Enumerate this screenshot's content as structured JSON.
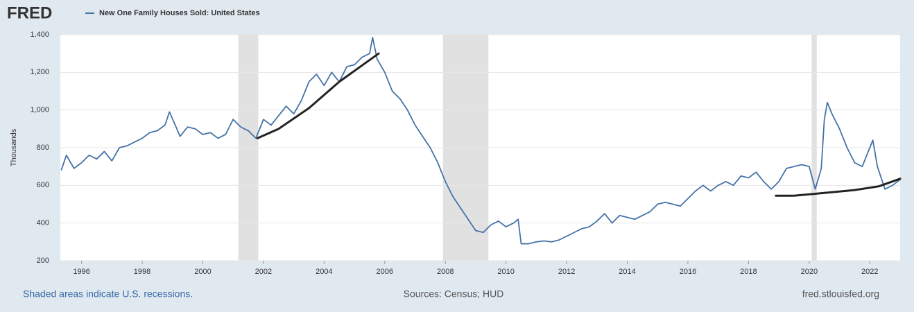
{
  "logo": "FRED",
  "chart_data": {
    "type": "line",
    "ylabel": "Thousands",
    "xlim": [
      1995.3,
      2023.0
    ],
    "ylim": [
      200,
      1400
    ],
    "xticks": [
      1996,
      1998,
      2000,
      2002,
      2004,
      2006,
      2008,
      2010,
      2012,
      2014,
      2016,
      2018,
      2020,
      2022
    ],
    "yticks": [
      200,
      400,
      600,
      800,
      {
        "value": 1000,
        "label": "1,000"
      },
      {
        "value": 1200,
        "label": "1,200"
      },
      {
        "value": 1400,
        "label": "1,400"
      }
    ],
    "grid": true,
    "recessions": [
      [
        2001.17,
        2001.83
      ],
      [
        2007.92,
        2009.42
      ],
      [
        2020.08,
        2020.25
      ]
    ],
    "recession_color": "#e1e1e1",
    "series": [
      {
        "name": "New One Family Houses Sold: United States",
        "color": "#4572a7",
        "x": [
          1995.33,
          1995.5,
          1995.75,
          1996.0,
          1996.25,
          1996.5,
          1996.75,
          1997.0,
          1997.25,
          1997.5,
          1997.75,
          1998.0,
          1998.25,
          1998.5,
          1998.75,
          1998.9,
          1999.25,
          1999.5,
          1999.75,
          2000.0,
          2000.25,
          2000.5,
          2000.75,
          2001.0,
          2001.25,
          2001.5,
          2001.75,
          2002.0,
          2002.25,
          2002.5,
          2002.75,
          2003.0,
          2003.25,
          2003.5,
          2003.75,
          2004.0,
          2004.25,
          2004.5,
          2004.75,
          2005.0,
          2005.25,
          2005.5,
          2005.6,
          2005.75,
          2006.0,
          2006.25,
          2006.5,
          2006.75,
          2007.0,
          2007.25,
          2007.5,
          2007.75,
          2008.0,
          2008.25,
          2008.5,
          2008.75,
          2009.0,
          2009.25,
          2009.5,
          2009.75,
          2010.0,
          2010.25,
          2010.4,
          2010.5,
          2010.75,
          2011.0,
          2011.25,
          2011.5,
          2011.75,
          2012.0,
          2012.25,
          2012.5,
          2012.75,
          2013.0,
          2013.25,
          2013.5,
          2013.75,
          2014.0,
          2014.25,
          2014.5,
          2014.75,
          2015.0,
          2015.25,
          2015.5,
          2015.75,
          2016.0,
          2016.25,
          2016.5,
          2016.75,
          2017.0,
          2017.25,
          2017.5,
          2017.75,
          2018.0,
          2018.25,
          2018.5,
          2018.75,
          2019.0,
          2019.25,
          2019.5,
          2019.75,
          2020.0,
          2020.2,
          2020.4,
          2020.5,
          2020.6,
          2020.75,
          2021.0,
          2021.25,
          2021.5,
          2021.75,
          2022.0,
          2022.1,
          2022.25,
          2022.5,
          2022.75,
          2023.0
        ],
        "values": [
          680,
          760,
          690,
          720,
          760,
          740,
          780,
          730,
          800,
          810,
          830,
          850,
          880,
          890,
          920,
          990,
          860,
          910,
          900,
          870,
          880,
          850,
          870,
          950,
          910,
          890,
          850,
          950,
          920,
          970,
          1020,
          980,
          1050,
          1150,
          1190,
          1130,
          1200,
          1150,
          1230,
          1240,
          1280,
          1300,
          1385,
          1270,
          1200,
          1100,
          1060,
          1000,
          920,
          860,
          800,
          720,
          620,
          540,
          480,
          420,
          360,
          350,
          390,
          410,
          380,
          400,
          420,
          290,
          290,
          300,
          305,
          300,
          310,
          330,
          350,
          370,
          380,
          410,
          450,
          400,
          440,
          430,
          420,
          440,
          460,
          500,
          510,
          500,
          490,
          530,
          570,
          600,
          570,
          600,
          620,
          600,
          650,
          640,
          670,
          620,
          580,
          620,
          690,
          700,
          710,
          700,
          580,
          690,
          950,
          1040,
          980,
          900,
          800,
          720,
          700,
          800,
          840,
          700,
          580,
          600,
          630
        ]
      }
    ],
    "trend_lines": [
      {
        "color": "#222222",
        "x": [
          2001.8,
          2002.5,
          2003.5,
          2004.5,
          2005.8
        ],
        "values": [
          850,
          900,
          1010,
          1150,
          1300
        ]
      },
      {
        "color": "#222222",
        "x": [
          2018.9,
          2019.5,
          2020.5,
          2021.5,
          2022.3,
          2023.0
        ],
        "values": [
          545,
          545,
          560,
          575,
          595,
          635
        ]
      }
    ],
    "footer_left": "Shaded areas indicate U.S. recessions.",
    "footer_center": "Sources: Census; HUD",
    "footer_right": "fred.stlouisfed.org"
  }
}
